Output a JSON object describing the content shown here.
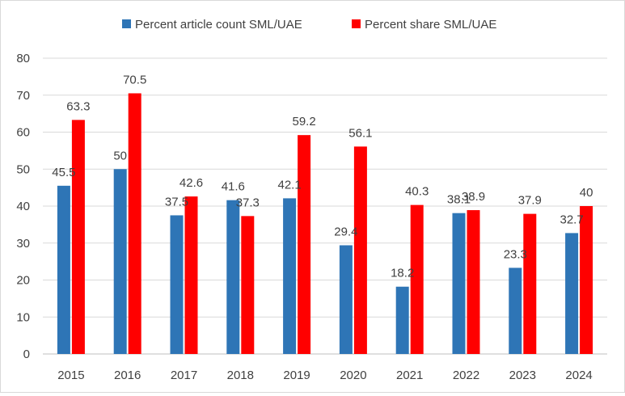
{
  "chart_data": {
    "type": "bar",
    "categories": [
      "2015",
      "2016",
      "2017",
      "2018",
      "2019",
      "2020",
      "2021",
      "2022",
      "2023",
      "2024"
    ],
    "series": [
      {
        "name": "Percent article count SML/UAE",
        "color": "#2e75b6",
        "values": [
          45.5,
          50,
          37.5,
          41.6,
          42.1,
          29.4,
          18.2,
          38.1,
          23.3,
          32.7
        ]
      },
      {
        "name": "Percent share SML/UAE",
        "color": "#ff0000",
        "values": [
          63.3,
          70.5,
          42.6,
          37.3,
          59.2,
          56.1,
          40.3,
          38.9,
          37.9,
          40
        ]
      }
    ],
    "ylim": [
      0,
      80
    ],
    "yticks": [
      0,
      10,
      20,
      30,
      40,
      50,
      60,
      70,
      80
    ],
    "grid": true,
    "legend_position": "top-center",
    "data_labels": true
  }
}
